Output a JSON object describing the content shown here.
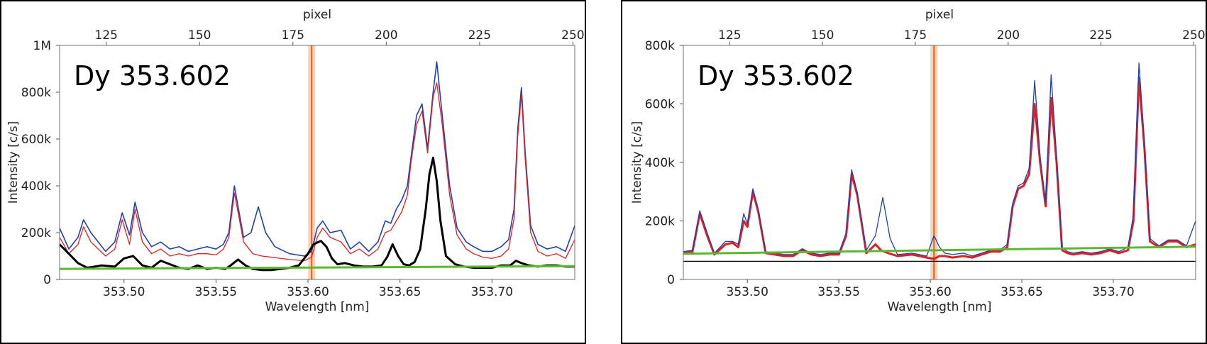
{
  "chart_data": [
    {
      "type": "line",
      "annotation": "Dy 353.602",
      "xlabel": "Wavelength [nm]",
      "ylabel": "Intensity [c/s]",
      "x2label": "pixel",
      "xlim": [
        353.465,
        353.745
      ],
      "ylim": [
        0,
        1000000
      ],
      "x2lim": [
        112.5,
        250.5
      ],
      "xticks": [
        353.5,
        353.55,
        353.6,
        353.65,
        353.7
      ],
      "xtick_labels": [
        "353.50",
        "353.55",
        "353.60",
        "353.65",
        "353.70"
      ],
      "yticks": [
        0,
        200000,
        400000,
        600000,
        800000,
        1000000
      ],
      "ytick_labels": [
        "0",
        "200k",
        "400k",
        "600k",
        "800k",
        "1M"
      ],
      "x2ticks": [
        125,
        150,
        175,
        200,
        225,
        250
      ],
      "x2tick_labels": [
        "125",
        "150",
        "175",
        "200",
        "225",
        "250"
      ],
      "marker_x": 353.602,
      "colors": {
        "blue": "#2040b0",
        "red": "#e02020",
        "black": "#000000",
        "green": "#5cb82e",
        "marker": "#e06020",
        "marker_band": "#f6d3b8"
      },
      "series": [
        {
          "color": "blue",
          "width": 1.6,
          "x": [
            353.465,
            353.47,
            353.475,
            353.478,
            353.482,
            353.49,
            353.495,
            353.499,
            353.503,
            353.506,
            353.51,
            353.515,
            353.52,
            353.525,
            353.53,
            353.535,
            353.54,
            353.545,
            353.55,
            353.554,
            353.557,
            353.56,
            353.565,
            353.569,
            353.573,
            353.577,
            353.582,
            353.59,
            353.598,
            353.602,
            353.605,
            353.608,
            353.612,
            353.618,
            353.623,
            353.628,
            353.633,
            353.638,
            353.642,
            353.645,
            353.648,
            353.651,
            353.654,
            353.656,
            353.659,
            353.662,
            353.665,
            353.668,
            353.67,
            353.673,
            353.677,
            353.681,
            353.686,
            353.69,
            353.695,
            353.7,
            353.705,
            353.709,
            353.712,
            353.714,
            353.716,
            353.718,
            353.721,
            353.725,
            353.73,
            353.735,
            353.74,
            353.745
          ],
          "y": [
            220000,
            130000,
            180000,
            255000,
            200000,
            120000,
            160000,
            285000,
            190000,
            330000,
            200000,
            140000,
            160000,
            130000,
            140000,
            120000,
            130000,
            140000,
            130000,
            150000,
            200000,
            400000,
            180000,
            200000,
            310000,
            200000,
            140000,
            110000,
            100000,
            120000,
            220000,
            250000,
            200000,
            210000,
            130000,
            160000,
            120000,
            160000,
            250000,
            240000,
            300000,
            340000,
            400000,
            520000,
            700000,
            750000,
            560000,
            800000,
            930000,
            700000,
            400000,
            220000,
            160000,
            140000,
            120000,
            120000,
            140000,
            170000,
            300000,
            640000,
            820000,
            550000,
            230000,
            150000,
            130000,
            140000,
            120000,
            230000
          ]
        },
        {
          "color": "red",
          "width": 1.3,
          "x": [
            353.465,
            353.47,
            353.475,
            353.478,
            353.482,
            353.49,
            353.495,
            353.499,
            353.503,
            353.506,
            353.51,
            353.515,
            353.52,
            353.525,
            353.53,
            353.535,
            353.54,
            353.545,
            353.55,
            353.554,
            353.557,
            353.56,
            353.565,
            353.57,
            353.575,
            353.58,
            353.59,
            353.598,
            353.602,
            353.605,
            353.608,
            353.612,
            353.618,
            353.623,
            353.628,
            353.633,
            353.638,
            353.642,
            353.645,
            353.648,
            353.651,
            353.654,
            353.656,
            353.659,
            353.662,
            353.665,
            353.668,
            353.67,
            353.673,
            353.677,
            353.681,
            353.686,
            353.69,
            353.695,
            353.7,
            353.705,
            353.709,
            353.712,
            353.714,
            353.716,
            353.718,
            353.721,
            353.725,
            353.73,
            353.735,
            353.74,
            353.745
          ],
          "y": [
            180000,
            110000,
            150000,
            225000,
            160000,
            100000,
            130000,
            255000,
            150000,
            300000,
            160000,
            110000,
            130000,
            100000,
            110000,
            100000,
            110000,
            110000,
            105000,
            130000,
            180000,
            370000,
            160000,
            110000,
            100000,
            95000,
            85000,
            80000,
            95000,
            180000,
            220000,
            180000,
            160000,
            110000,
            130000,
            100000,
            130000,
            200000,
            210000,
            250000,
            290000,
            360000,
            500000,
            660000,
            720000,
            540000,
            780000,
            840000,
            660000,
            360000,
            190000,
            130000,
            110000,
            95000,
            90000,
            100000,
            130000,
            260000,
            610000,
            790000,
            520000,
            200000,
            120000,
            100000,
            110000,
            90000,
            170000
          ]
        },
        {
          "color": "black",
          "width": 3,
          "x": [
            353.465,
            353.47,
            353.475,
            353.48,
            353.488,
            353.495,
            353.5,
            353.505,
            353.51,
            353.515,
            353.52,
            353.525,
            353.53,
            353.535,
            353.54,
            353.545,
            353.55,
            353.555,
            353.558,
            353.562,
            353.566,
            353.57,
            353.575,
            353.58,
            353.585,
            353.59,
            353.595,
            353.6,
            353.603,
            353.607,
            353.61,
            353.613,
            353.616,
            353.62,
            353.625,
            353.63,
            353.635,
            353.64,
            353.643,
            353.646,
            353.649,
            353.652,
            353.655,
            353.658,
            353.661,
            353.664,
            353.666,
            353.668,
            353.67,
            353.672,
            353.675,
            353.68,
            353.685,
            353.69,
            353.695,
            353.7,
            353.705,
            353.71,
            353.713,
            353.716,
            353.72,
            353.725,
            353.73,
            353.735,
            353.74,
            353.745
          ],
          "y": [
            150000,
            110000,
            70000,
            50000,
            60000,
            55000,
            90000,
            100000,
            60000,
            50000,
            80000,
            65000,
            50000,
            45000,
            60000,
            45000,
            50000,
            45000,
            60000,
            85000,
            60000,
            45000,
            40000,
            40000,
            45000,
            50000,
            60000,
            110000,
            150000,
            165000,
            140000,
            90000,
            65000,
            70000,
            60000,
            55000,
            55000,
            60000,
            95000,
            150000,
            100000,
            65000,
            60000,
            75000,
            130000,
            300000,
            450000,
            520000,
            420000,
            250000,
            100000,
            65000,
            55000,
            50000,
            50000,
            50000,
            60000,
            60000,
            80000,
            70000,
            60000,
            55000,
            60000,
            60000,
            55000,
            55000
          ]
        },
        {
          "color": "green",
          "width": 3,
          "x": [
            353.465,
            353.745
          ],
          "y": [
            45000,
            57000
          ]
        }
      ]
    },
    {
      "type": "line",
      "annotation": "Dy 353.602",
      "xlabel": "Wavelength [nm]",
      "ylabel": "Intensity [c/s]",
      "x2label": "pixel",
      "xlim": [
        353.465,
        353.745
      ],
      "ylim": [
        0,
        800000
      ],
      "x2lim": [
        112.5,
        250.5
      ],
      "xticks": [
        353.5,
        353.55,
        353.6,
        353.65,
        353.7
      ],
      "xtick_labels": [
        "353.50",
        "353.55",
        "353.60",
        "353.65",
        "353.70"
      ],
      "yticks": [
        0,
        200000,
        400000,
        600000,
        800000
      ],
      "ytick_labels": [
        "0",
        "200k",
        "400k",
        "600k",
        "800k"
      ],
      "x2ticks": [
        125,
        150,
        175,
        200,
        225,
        250
      ],
      "x2tick_labels": [
        "125",
        "150",
        "175",
        "200",
        "225",
        "250"
      ],
      "marker_x": 353.602,
      "colors": {
        "blue": "#2040b0",
        "red": "#e02020",
        "black": "#000000",
        "green": "#5cb82e",
        "marker": "#e06020",
        "marker_band": "#f6d3b8"
      },
      "series": [
        {
          "color": "red",
          "width": 3,
          "x": [
            353.465,
            353.47,
            353.474,
            353.478,
            353.482,
            353.488,
            353.492,
            353.495,
            353.498,
            353.5,
            353.503,
            353.506,
            353.51,
            353.515,
            353.52,
            353.525,
            353.53,
            353.535,
            353.54,
            353.545,
            353.55,
            353.554,
            353.557,
            353.56,
            353.565,
            353.57,
            353.573,
            353.577,
            353.582,
            353.59,
            353.598,
            353.602,
            353.605,
            353.608,
            353.612,
            353.618,
            353.623,
            353.628,
            353.633,
            353.638,
            353.642,
            353.645,
            353.648,
            353.651,
            353.654,
            353.657,
            353.66,
            353.663,
            353.666,
            353.669,
            353.672,
            353.675,
            353.678,
            353.683,
            353.688,
            353.693,
            353.698,
            353.703,
            353.708,
            353.711,
            353.714,
            353.717,
            353.72,
            353.725,
            353.73,
            353.735,
            353.74,
            353.745
          ],
          "y": [
            90000,
            95000,
            225000,
            150000,
            85000,
            120000,
            125000,
            110000,
            200000,
            180000,
            300000,
            230000,
            90000,
            85000,
            80000,
            80000,
            100000,
            85000,
            80000,
            85000,
            85000,
            150000,
            360000,
            290000,
            90000,
            120000,
            100000,
            90000,
            80000,
            85000,
            75000,
            70000,
            80000,
            80000,
            75000,
            80000,
            75000,
            85000,
            95000,
            95000,
            110000,
            250000,
            310000,
            320000,
            360000,
            600000,
            400000,
            250000,
            620000,
            400000,
            100000,
            90000,
            85000,
            90000,
            85000,
            90000,
            100000,
            90000,
            100000,
            200000,
            690000,
            450000,
            130000,
            110000,
            130000,
            130000,
            110000,
            120000
          ]
        },
        {
          "color": "blue",
          "width": 1.3,
          "x": [
            353.465,
            353.47,
            353.474,
            353.478,
            353.482,
            353.488,
            353.492,
            353.495,
            353.498,
            353.5,
            353.503,
            353.506,
            353.51,
            353.515,
            353.52,
            353.525,
            353.53,
            353.535,
            353.54,
            353.545,
            353.55,
            353.554,
            353.557,
            353.56,
            353.565,
            353.57,
            353.574,
            353.578,
            353.582,
            353.59,
            353.598,
            353.602,
            353.605,
            353.608,
            353.612,
            353.618,
            353.623,
            353.628,
            353.633,
            353.638,
            353.642,
            353.645,
            353.648,
            353.651,
            353.654,
            353.657,
            353.66,
            353.663,
            353.666,
            353.669,
            353.672,
            353.675,
            353.678,
            353.683,
            353.688,
            353.693,
            353.698,
            353.703,
            353.708,
            353.711,
            353.714,
            353.717,
            353.72,
            353.725,
            353.73,
            353.735,
            353.74,
            353.745
          ],
          "y": [
            95000,
            100000,
            235000,
            160000,
            90000,
            130000,
            130000,
            120000,
            225000,
            190000,
            310000,
            240000,
            95000,
            90000,
            85000,
            85000,
            105000,
            90000,
            85000,
            90000,
            90000,
            160000,
            375000,
            300000,
            100000,
            150000,
            280000,
            140000,
            85000,
            90000,
            80000,
            150000,
            110000,
            90000,
            85000,
            90000,
            80000,
            90000,
            100000,
            100000,
            120000,
            260000,
            320000,
            330000,
            380000,
            680000,
            420000,
            260000,
            700000,
            420000,
            110000,
            95000,
            90000,
            95000,
            90000,
            95000,
            105000,
            95000,
            110000,
            220000,
            740000,
            470000,
            140000,
            115000,
            135000,
            135000,
            115000,
            200000
          ]
        },
        {
          "color": "green",
          "width": 3,
          "x": [
            353.465,
            353.745
          ],
          "y": [
            88000,
            112000
          ]
        },
        {
          "color": "black",
          "width": 1.3,
          "x": [
            353.465,
            353.745
          ],
          "y": [
            62000,
            62000
          ]
        }
      ]
    }
  ]
}
